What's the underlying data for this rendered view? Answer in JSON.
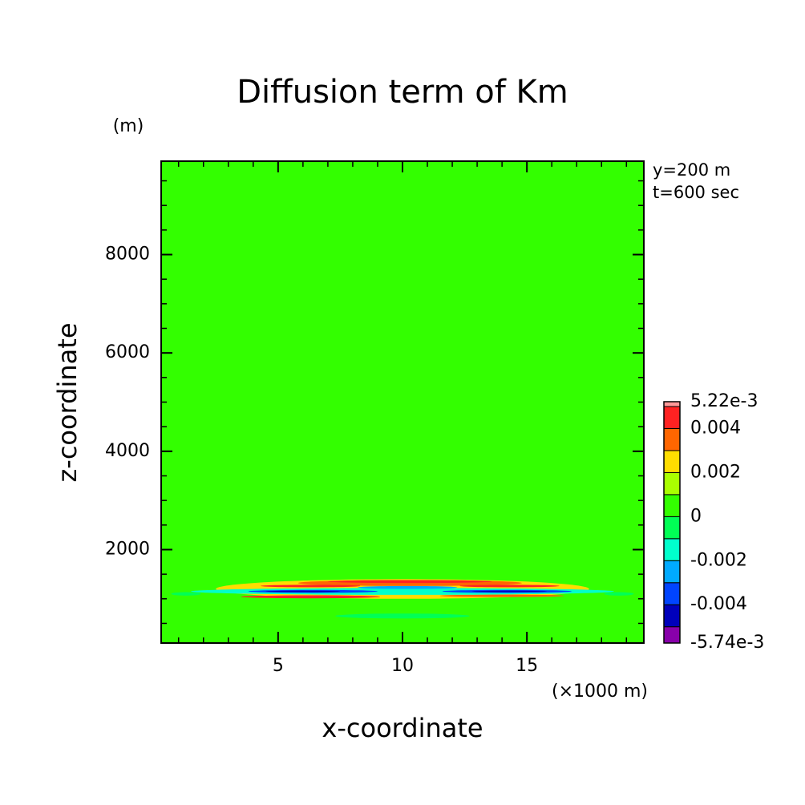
{
  "chart_data": {
    "type": "contour",
    "title": "Diffusion term of Km",
    "x_label": "x-coordinate",
    "y_label": "z-coordinate",
    "x_unit": "(×1000 m)",
    "y_unit": "(m)",
    "annotations": [
      "y=200 m",
      "t=600 sec"
    ],
    "xlim": [
      0.3,
      19.7
    ],
    "ylim": [
      100,
      9900
    ],
    "xticks": [
      5,
      10,
      15
    ],
    "yticks": [
      2000,
      4000,
      6000,
      8000
    ],
    "xminorticks": [
      1,
      2,
      3,
      4,
      6,
      7,
      8,
      9,
      11,
      12,
      13,
      14,
      16,
      17,
      18,
      19
    ],
    "yminorticks": [
      500,
      1000,
      1500,
      2500,
      3000,
      3500,
      4500,
      5000,
      5500,
      6500,
      7000,
      7500,
      8500,
      9000,
      9500
    ],
    "background_value": 0.0004,
    "features": [
      {
        "x": 10,
        "z": 1200,
        "rx": 7.5,
        "rz": 200,
        "value": 0.0025
      },
      {
        "x": 10.3,
        "z": 1320,
        "rx": 4.5,
        "rz": 60,
        "value": 0.0035
      },
      {
        "x": 10.3,
        "z": 1350,
        "rx": 3.3,
        "rz": 30,
        "value": 0.0045
      },
      {
        "x": 6.3,
        "z": 1260,
        "rx": 2,
        "rz": 25,
        "value": 0.0045
      },
      {
        "x": 14.3,
        "z": 1260,
        "rx": 2,
        "rz": 25,
        "value": 0.0045
      },
      {
        "x": 6.3,
        "z": 1040,
        "rx": 2.8,
        "rz": 30,
        "value": 0.0045
      },
      {
        "x": 14.0,
        "z": 1060,
        "rx": 2.5,
        "rz": 25,
        "value": 0.0035
      },
      {
        "x": 10,
        "z": 1150,
        "rx": 8.5,
        "rz": 70,
        "value": -0.0015
      },
      {
        "x": 10.2,
        "z": 1230,
        "rx": 2,
        "rz": 30,
        "value": -0.0025
      },
      {
        "x": 6.4,
        "z": 1150,
        "rx": 2.6,
        "rz": 30,
        "value": -0.0035
      },
      {
        "x": 14.2,
        "z": 1150,
        "rx": 2.6,
        "rz": 30,
        "value": -0.0035
      },
      {
        "x": 6.0,
        "z": 1150,
        "rx": 1.5,
        "rz": 15,
        "value": -0.0045
      },
      {
        "x": 14.3,
        "z": 1150,
        "rx": 1.5,
        "rz": 15,
        "value": -0.0045
      },
      {
        "x": 10,
        "z": 650,
        "rx": 2.7,
        "rz": 50,
        "value": -0.0005
      },
      {
        "x": 1.3,
        "z": 1100,
        "rx": 0.6,
        "rz": 35,
        "value": -0.0005
      },
      {
        "x": 18.7,
        "z": 1100,
        "rx": 0.6,
        "rz": 35,
        "value": -0.0005
      }
    ],
    "levels": [
      -0.00574,
      -0.005,
      -0.004,
      -0.003,
      -0.002,
      -0.001,
      0,
      0.001,
      0.002,
      0.003,
      0.004,
      0.005,
      0.00522
    ],
    "colors": [
      "#8800aa",
      "#0000bb",
      "#0044ff",
      "#00aaff",
      "#00ffcc",
      "#00ff55",
      "#33ff00",
      "#aaff00",
      "#ffdd00",
      "#ff6600",
      "#ff2222",
      "#ff9999"
    ],
    "colorbar_ticks": [
      {
        "value": 0.00522,
        "label": "5.22e-3"
      },
      0.004,
      0.002,
      0,
      -0.002,
      -0.004,
      {
        "value": -0.00574,
        "label": "-5.74e-3"
      }
    ]
  }
}
